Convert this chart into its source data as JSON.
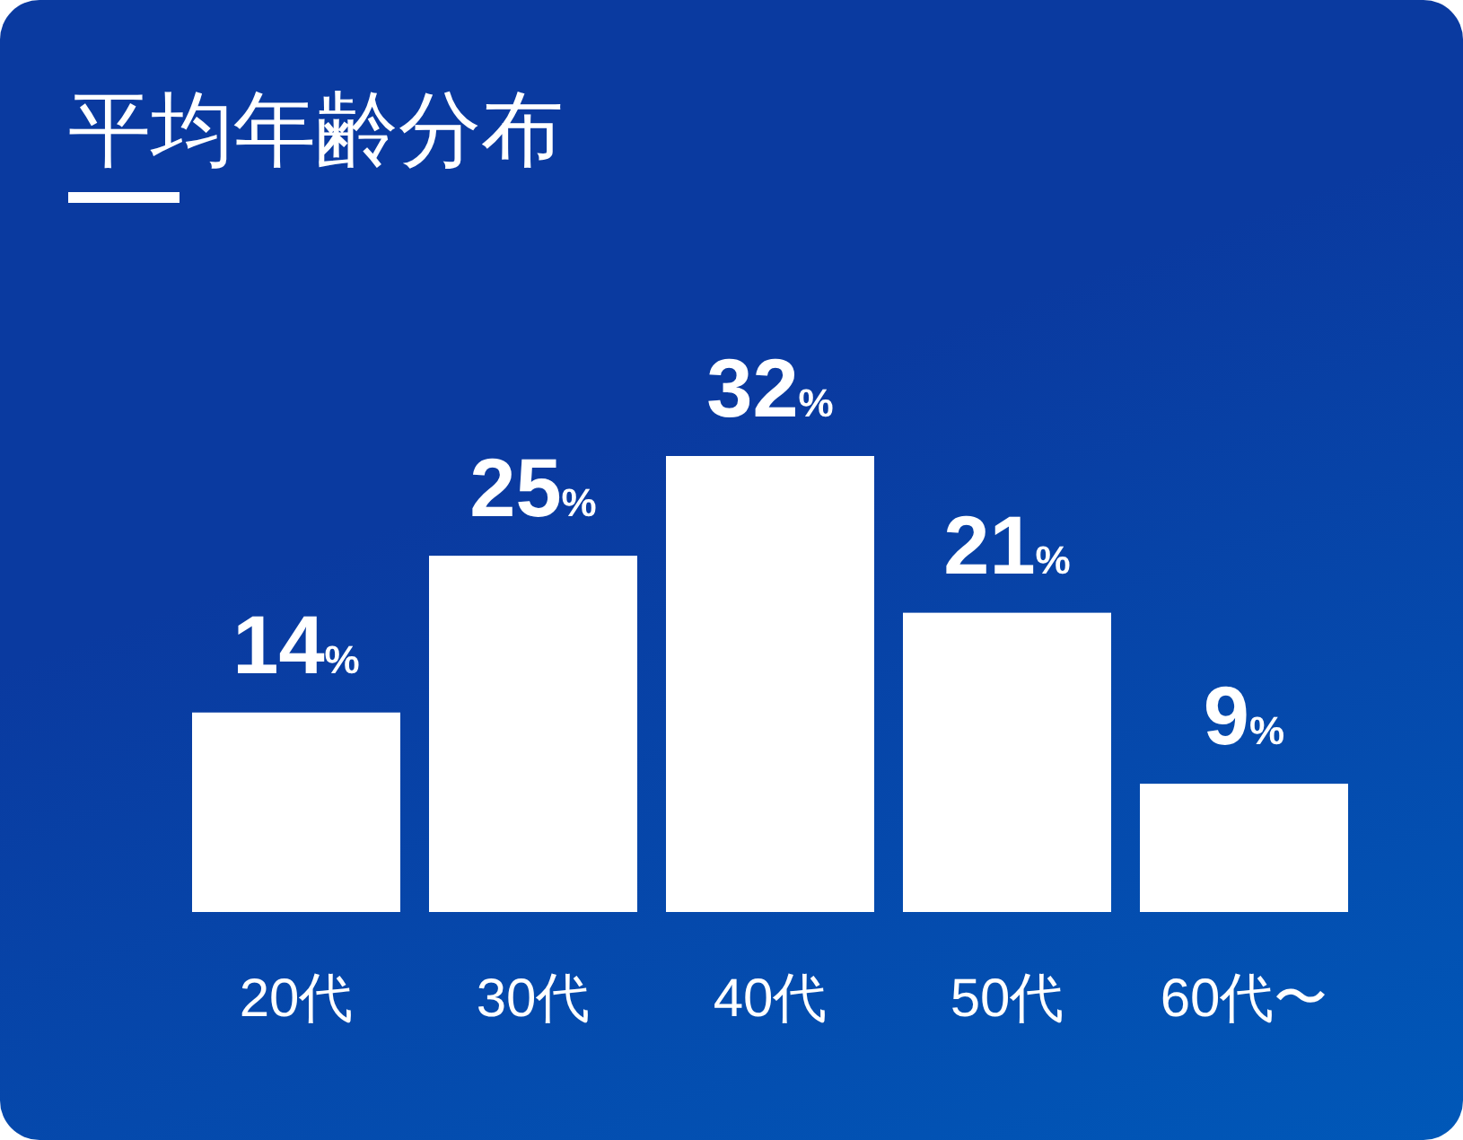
{
  "chart_data": {
    "type": "bar",
    "title": "平均年齢分布",
    "categories": [
      "20代",
      "30代",
      "40代",
      "50代",
      "60代〜"
    ],
    "values": [
      14,
      25,
      32,
      21,
      9
    ],
    "value_labels": [
      "14%",
      "25%",
      "32%",
      "21%",
      "9%"
    ],
    "color": "#ffffff"
  }
}
